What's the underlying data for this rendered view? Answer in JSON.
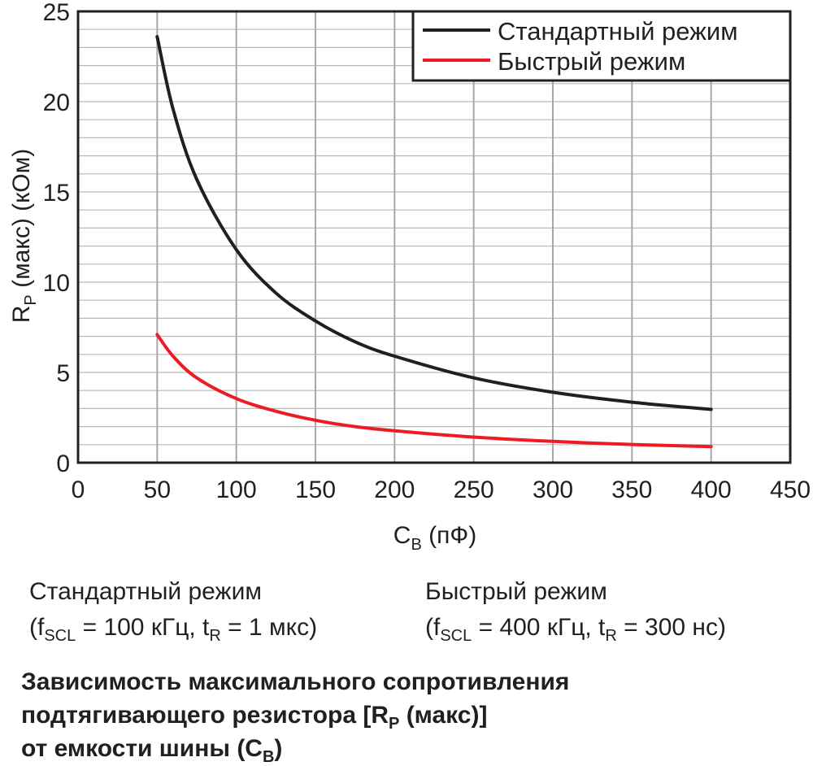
{
  "chart_data": {
    "type": "line",
    "title": "",
    "x_range": [
      0,
      450
    ],
    "y_range": [
      0,
      25
    ],
    "x_ticks": [
      "0",
      "50",
      "100",
      "150",
      "200",
      "250",
      "300",
      "350",
      "400",
      "450"
    ],
    "y_ticks": [
      "0",
      "5",
      "10",
      "15",
      "20",
      "25"
    ],
    "grid": true,
    "legend_position": "top-right",
    "xlabel": {
      "main": "C",
      "sub": "B",
      "unit": " (пФ)"
    },
    "ylabel": {
      "main": "R",
      "sub": "P",
      "unit": " (макс) (кОм)"
    },
    "series": [
      {
        "name": "Стандартный режим",
        "color": "#231f20",
        "x": [
          50,
          60,
          75,
          100,
          125,
          150,
          175,
          200,
          250,
          300,
          350,
          400
        ],
        "y": [
          23.6,
          19.6,
          15.7,
          11.8,
          9.4,
          7.85,
          6.7,
          5.9,
          4.7,
          3.9,
          3.35,
          2.95
        ]
      },
      {
        "name": "Быстрый режим",
        "color": "#ed1c24",
        "x": [
          50,
          60,
          75,
          100,
          125,
          150,
          175,
          200,
          250,
          300,
          350,
          400
        ],
        "y": [
          7.1,
          5.9,
          4.7,
          3.55,
          2.85,
          2.35,
          2.0,
          1.77,
          1.42,
          1.18,
          1.01,
          0.89
        ]
      }
    ]
  },
  "notes": {
    "standard": {
      "title": "Стандартный режим",
      "f": "f",
      "f_sub": "SCL",
      "f_val": " = 100 кГц, t",
      "t_sub": "R",
      "t_val": " = 1 мкс)",
      "open": "("
    },
    "fast": {
      "title": "Быстрый режим",
      "f": "f",
      "f_sub": "SCL",
      "f_val": " = 400 кГц, t",
      "t_sub": "R",
      "t_val": " = 300 нс)",
      "open": "("
    }
  },
  "caption": {
    "line1": "Зависимость максимального сопротивления",
    "line2_a": "подтягивающего резистора [R",
    "line2_sub": "P",
    "line2_b": " (макс)]",
    "line3_a": "от емкости шины (C",
    "line3_sub": "B",
    "line3_b": ")"
  }
}
